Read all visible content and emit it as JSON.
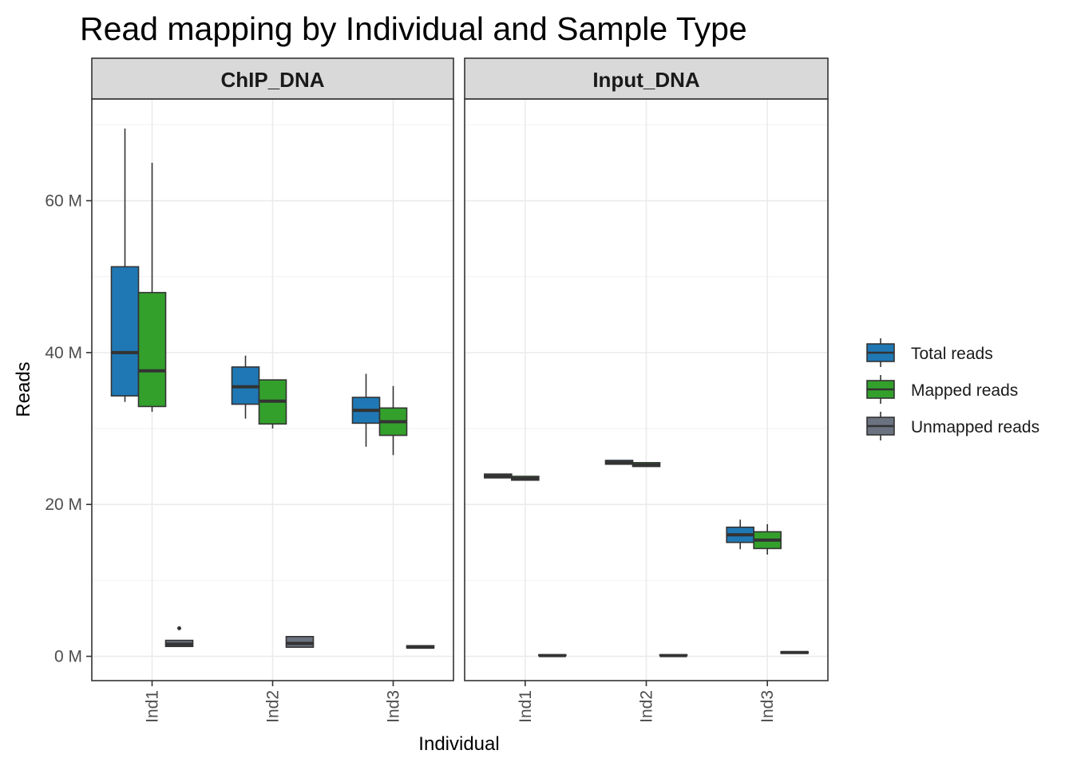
{
  "chart_data": {
    "type": "boxplot",
    "title": "Read mapping by Individual and Sample Type",
    "xlabel": "Individual",
    "ylabel": "Reads",
    "y_ticks": [
      {
        "value": 0,
        "label": "0 M"
      },
      {
        "value": 20,
        "label": "20 M"
      },
      {
        "value": 40,
        "label": "40 M"
      },
      {
        "value": 60,
        "label": "60 M"
      }
    ],
    "ylim": [
      -3.2,
      73.4
    ],
    "grid": true,
    "legend_position": "right",
    "categories": [
      "Ind1",
      "Ind2",
      "Ind3"
    ],
    "series": [
      {
        "name": "Total reads",
        "color": "#1f78b4"
      },
      {
        "name": "Mapped reads",
        "color": "#33a02c"
      },
      {
        "name": "Unmapped reads",
        "color": "#6b7280"
      }
    ],
    "facets": [
      {
        "label": "ChIP_DNA",
        "boxes": [
          {
            "category": "Ind1",
            "series": "Total reads",
            "min": 33.5,
            "q1": 34.3,
            "median": 40.0,
            "q3": 51.3,
            "max": 69.5,
            "outliers": []
          },
          {
            "category": "Ind1",
            "series": "Mapped reads",
            "min": 32.2,
            "q1": 32.9,
            "median": 37.6,
            "q3": 47.9,
            "max": 65.0,
            "outliers": []
          },
          {
            "category": "Ind1",
            "series": "Unmapped reads",
            "min": 1.3,
            "q1": 1.3,
            "median": 1.6,
            "q3": 2.1,
            "max": 2.1,
            "outliers": [
              3.7
            ]
          },
          {
            "category": "Ind2",
            "series": "Total reads",
            "min": 31.3,
            "q1": 33.2,
            "median": 35.5,
            "q3": 38.1,
            "max": 39.6,
            "outliers": []
          },
          {
            "category": "Ind2",
            "series": "Mapped reads",
            "min": 30.0,
            "q1": 30.6,
            "median": 33.6,
            "q3": 36.4,
            "max": 36.4,
            "outliers": []
          },
          {
            "category": "Ind2",
            "series": "Unmapped reads",
            "min": 1.2,
            "q1": 1.2,
            "median": 1.7,
            "q3": 2.6,
            "max": 2.6,
            "outliers": []
          },
          {
            "category": "Ind3",
            "series": "Total reads",
            "min": 27.6,
            "q1": 30.7,
            "median": 32.4,
            "q3": 34.1,
            "max": 37.2,
            "outliers": []
          },
          {
            "category": "Ind3",
            "series": "Mapped reads",
            "min": 26.5,
            "q1": 29.1,
            "median": 30.9,
            "q3": 32.7,
            "max": 35.6,
            "outliers": []
          },
          {
            "category": "Ind3",
            "series": "Unmapped reads",
            "min": 1.1,
            "q1": 1.1,
            "median": 1.2,
            "q3": 1.4,
            "max": 1.4,
            "outliers": []
          }
        ]
      },
      {
        "label": "Input_DNA",
        "boxes": [
          {
            "category": "Ind1",
            "series": "Total reads",
            "min": 23.5,
            "q1": 23.5,
            "median": 23.7,
            "q3": 24.0,
            "max": 24.0,
            "outliers": []
          },
          {
            "category": "Ind1",
            "series": "Mapped reads",
            "min": 23.2,
            "q1": 23.2,
            "median": 23.4,
            "q3": 23.7,
            "max": 23.7,
            "outliers": []
          },
          {
            "category": "Ind1",
            "series": "Unmapped reads",
            "min": 0.1,
            "q1": 0.1,
            "median": 0.1,
            "q3": 0.2,
            "max": 0.2,
            "outliers": []
          },
          {
            "category": "Ind2",
            "series": "Total reads",
            "min": 25.3,
            "q1": 25.3,
            "median": 25.5,
            "q3": 25.8,
            "max": 25.8,
            "outliers": []
          },
          {
            "category": "Ind2",
            "series": "Mapped reads",
            "min": 25.0,
            "q1": 25.0,
            "median": 25.2,
            "q3": 25.5,
            "max": 25.5,
            "outliers": []
          },
          {
            "category": "Ind2",
            "series": "Unmapped reads",
            "min": 0.1,
            "q1": 0.1,
            "median": 0.1,
            "q3": 0.2,
            "max": 0.2,
            "outliers": []
          },
          {
            "category": "Ind3",
            "series": "Total reads",
            "min": 14.1,
            "q1": 15.0,
            "median": 16.0,
            "q3": 17.0,
            "max": 18.0,
            "outliers": []
          },
          {
            "category": "Ind3",
            "series": "Mapped reads",
            "min": 13.4,
            "q1": 14.2,
            "median": 15.3,
            "q3": 16.4,
            "max": 17.4,
            "outliers": []
          },
          {
            "category": "Ind3",
            "series": "Unmapped reads",
            "min": 0.4,
            "q1": 0.4,
            "median": 0.5,
            "q3": 0.6,
            "max": 0.6,
            "outliers": []
          }
        ]
      }
    ]
  }
}
